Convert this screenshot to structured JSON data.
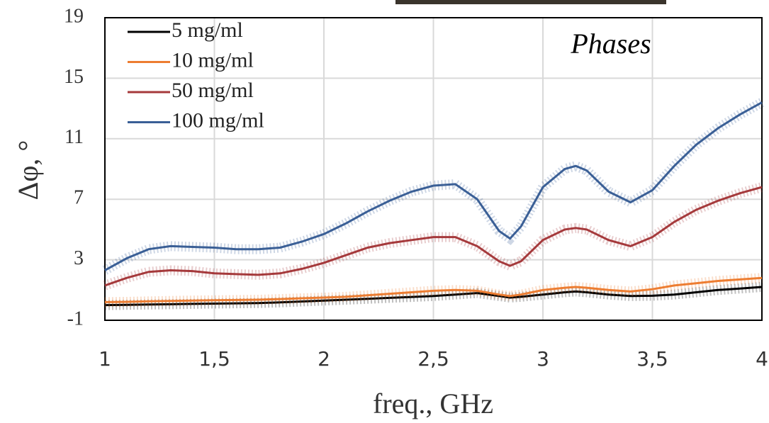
{
  "chart_data": {
    "type": "line",
    "annotation": "Phases",
    "xlabel": "freq., GHz",
    "ylabel": "Δφ, °",
    "x": [
      1,
      1.1,
      1.2,
      1.3,
      1.4,
      1.5,
      1.6,
      1.7,
      1.8,
      1.9,
      2,
      2.1,
      2.2,
      2.3,
      2.4,
      2.5,
      2.6,
      2.7,
      2.8,
      2.85,
      2.9,
      3,
      3.1,
      3.15,
      3.2,
      3.3,
      3.4,
      3.5,
      3.6,
      3.7,
      3.8,
      3.9,
      4
    ],
    "series": [
      {
        "name": "5 mg/ml",
        "color": "#000000",
        "values": [
          0,
          0.02,
          0.04,
          0.06,
          0.08,
          0.1,
          0.12,
          0.14,
          0.18,
          0.24,
          0.3,
          0.36,
          0.42,
          0.48,
          0.54,
          0.6,
          0.7,
          0.8,
          0.6,
          0.5,
          0.55,
          0.7,
          0.85,
          0.9,
          0.85,
          0.7,
          0.6,
          0.62,
          0.7,
          0.85,
          1.0,
          1.1,
          1.2
        ]
      },
      {
        "name": "10 mg/ml",
        "color": "#ed7d31",
        "values": [
          0.2,
          0.22,
          0.25,
          0.28,
          0.3,
          0.32,
          0.34,
          0.36,
          0.4,
          0.45,
          0.5,
          0.55,
          0.65,
          0.75,
          0.85,
          0.95,
          1.0,
          0.95,
          0.7,
          0.6,
          0.7,
          1.0,
          1.15,
          1.2,
          1.15,
          1.0,
          0.9,
          1.05,
          1.3,
          1.45,
          1.6,
          1.7,
          1.8
        ]
      },
      {
        "name": "50 mg/ml",
        "color": "#a5393b",
        "values": [
          1.3,
          1.8,
          2.2,
          2.3,
          2.25,
          2.1,
          2.05,
          2.0,
          2.1,
          2.4,
          2.8,
          3.3,
          3.8,
          4.1,
          4.3,
          4.5,
          4.5,
          3.9,
          2.9,
          2.6,
          2.9,
          4.3,
          5.0,
          5.1,
          5.0,
          4.3,
          3.9,
          4.5,
          5.5,
          6.3,
          6.9,
          7.4,
          7.8
        ]
      },
      {
        "name": "100 mg/ml",
        "color": "#3a5f96",
        "values": [
          2.3,
          3.1,
          3.7,
          3.9,
          3.85,
          3.8,
          3.7,
          3.7,
          3.8,
          4.2,
          4.7,
          5.4,
          6.2,
          6.9,
          7.5,
          7.9,
          8.0,
          7.0,
          4.9,
          4.4,
          5.2,
          7.8,
          9.0,
          9.2,
          8.9,
          7.5,
          6.8,
          7.6,
          9.2,
          10.6,
          11.7,
          12.6,
          13.4
        ]
      }
    ],
    "xlim": [
      1,
      4
    ],
    "ylim": [
      -1,
      19
    ],
    "xticks": [
      1,
      {
        "value": 1.5,
        "label": "1,5"
      },
      2,
      {
        "value": 2.5,
        "label": "2,5"
      },
      3,
      {
        "value": 3.5,
        "label": "3,5"
      },
      4
    ],
    "yticks": [
      -1,
      3,
      7,
      11,
      15,
      19
    ],
    "grid": true
  }
}
